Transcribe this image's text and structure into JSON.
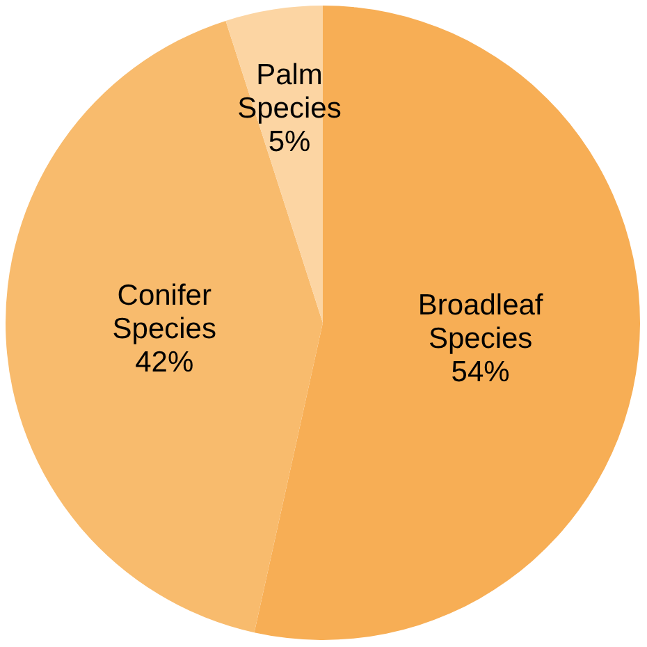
{
  "chart_data": {
    "type": "pie",
    "categories": [
      "Broadleaf Species",
      "Conifer Species",
      "Palm Species"
    ],
    "values": [
      54,
      42,
      5
    ],
    "colors": [
      "#f7ae55",
      "#f8bb6d",
      "#fcd5a3"
    ],
    "value_labels": [
      "54%",
      "42%",
      "5%"
    ],
    "legend": false
  }
}
